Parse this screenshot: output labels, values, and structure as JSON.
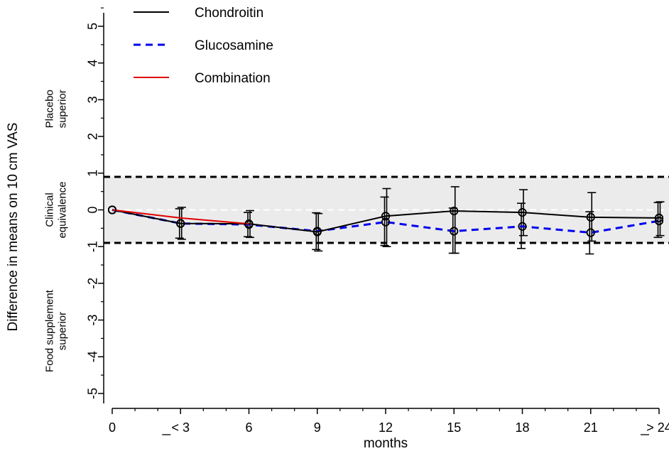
{
  "chart_data": {
    "type": "line",
    "title": "",
    "xlabel": "months",
    "ylabel": "Difference in means on 10 cm VAS",
    "x": [
      0,
      3,
      6,
      9,
      12,
      15,
      18,
      21,
      24
    ],
    "x_tick_labels": [
      "0",
      "≤ 3",
      "6",
      "9",
      "12",
      "15",
      "18",
      "21",
      "≥ 24"
    ],
    "y_ticks": [
      5,
      4,
      3,
      2,
      1,
      0,
      -1,
      -2,
      -3,
      -4,
      -5
    ],
    "y_tick_labels": [
      "5",
      "4",
      "3",
      "2",
      "1",
      "0",
      "-1",
      "-2",
      "-3",
      "-4",
      "-5"
    ],
    "ylim": [
      -5.5,
      5.5
    ],
    "xlim": [
      0,
      24
    ],
    "equivalence_margin": 0.9,
    "region_labels": {
      "upper": [
        "Placebo",
        "superior"
      ],
      "middle": [
        "Clinical",
        "equivalence"
      ],
      "lower": [
        "Food supplement",
        "superior"
      ]
    },
    "legend_position": "top-left",
    "grid": false,
    "series": [
      {
        "name": "Chondroitin",
        "color": "#000000",
        "dash": "solid",
        "x": [
          0,
          3,
          6,
          9,
          12,
          15,
          18,
          21,
          24
        ],
        "y": [
          0,
          -0.37,
          -0.38,
          -0.6,
          -0.17,
          -0.03,
          -0.07,
          -0.2,
          -0.22
        ],
        "ci_low": [
          0,
          -0.8,
          -0.75,
          -1.12,
          -1.0,
          -1.18,
          -0.7,
          -0.85,
          -0.7
        ],
        "ci_high": [
          0,
          0.07,
          -0.02,
          -0.1,
          0.58,
          0.63,
          0.55,
          0.47,
          0.22
        ]
      },
      {
        "name": "Glucosamine",
        "color": "#0000ee",
        "dash": "dashed",
        "x": [
          0,
          3,
          6,
          9,
          12,
          15,
          18,
          21,
          24
        ],
        "y": [
          0,
          -0.37,
          -0.4,
          -0.58,
          -0.33,
          -0.58,
          -0.45,
          -0.62,
          -0.3
        ],
        "ci_low": [
          0,
          -0.77,
          -0.73,
          -1.08,
          -0.97,
          -1.18,
          -1.05,
          -1.2,
          -0.75
        ],
        "ci_high": [
          0,
          0.03,
          -0.07,
          -0.08,
          0.35,
          0.05,
          0.18,
          -0.05,
          0.2
        ]
      },
      {
        "name": "Combination",
        "color": "#e00000",
        "dash": "solid",
        "x": [
          0,
          3,
          6
        ],
        "y": [
          0,
          -0.22,
          -0.38
        ]
      }
    ]
  }
}
